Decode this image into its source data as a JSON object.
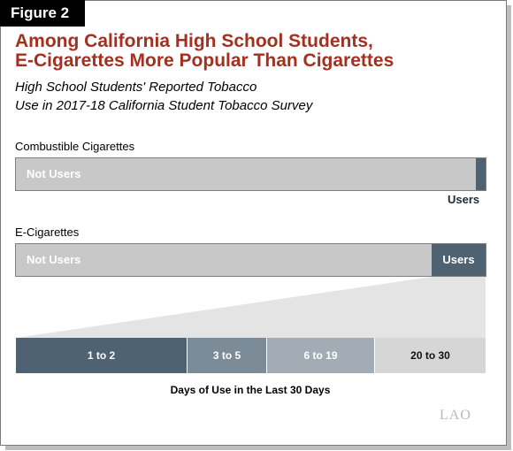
{
  "figure_label": "Figure 2",
  "title_line1": "Among California High School Students,",
  "title_line2": "E-Cigarettes More Popular Than Cigarettes",
  "subtitle_line1": "High School Students' Reported Tobacco",
  "subtitle_line2": "Use in 2017-18 California Student Tobacco Survey",
  "logo_text": "LAO",
  "colors": {
    "title": "#a33020",
    "dark_slate": "#4e6272",
    "light_gray": "#c8c8c8"
  },
  "chart_data": {
    "type": "bar",
    "title": "High School Students' Reported Tobacco Use in 2017-18 California Student Tobacco Survey",
    "panels": [
      {
        "label": "Combustible Cigarettes",
        "segments": [
          {
            "name": "Not Users",
            "share": 0.98
          },
          {
            "name": "Users",
            "share": 0.02
          }
        ]
      },
      {
        "label": "E-Cigarettes",
        "segments": [
          {
            "name": "Not Users",
            "share": 0.885
          },
          {
            "name": "Users",
            "share": 0.115
          }
        ]
      }
    ],
    "users_breakdown": {
      "xlabel": "Days of Use in the Last 30 Days",
      "categories": [
        "1 to 2",
        "3 to 5",
        "6 to 19",
        "20 to 30"
      ],
      "shares": [
        0.365,
        0.17,
        0.23,
        0.235
      ]
    }
  }
}
